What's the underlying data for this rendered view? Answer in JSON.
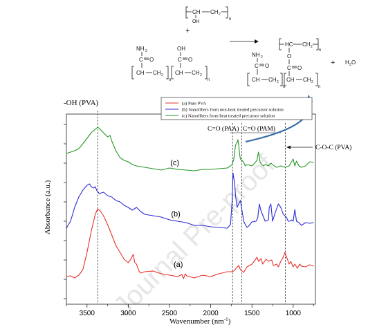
{
  "chart_data": {
    "type": "line",
    "xlabel": "Wavenumber (nm",
    "xlabel_sup": "-1",
    "xlabel_close": ")",
    "ylabel": "Absorbance (a.u.)",
    "xlim": [
      3750,
      730
    ],
    "x_reversed": true,
    "xticks": [
      3500,
      3000,
      2500,
      2000,
      1500,
      1000
    ],
    "y_ticks_labeled": false,
    "legend": {
      "placement": "top-right",
      "entries": [
        {
          "label": "(a) Pure PVA",
          "color": "#e8302a"
        },
        {
          "label": "(b) Nanofibers from non-heat treated precursor solution",
          "color": "#2a2ad6"
        },
        {
          "label": "(c) Nanofibers from heat treated precursor solution",
          "color": "#249624"
        }
      ]
    },
    "series": [
      {
        "name": "(a) Pure PVA",
        "label": "(a)",
        "color": "#e8302a",
        "x": [
          3750,
          3700,
          3650,
          3600,
          3550,
          3500,
          3450,
          3400,
          3370,
          3340,
          3300,
          3250,
          3200,
          3150,
          3100,
          3050,
          3000,
          2970,
          2940,
          2920,
          2900,
          2870,
          2850,
          2800,
          2700,
          2600,
          2500,
          2400,
          2350,
          2330,
          2310,
          2290,
          2200,
          2100,
          2000,
          1900,
          1800,
          1750,
          1720,
          1700,
          1660,
          1640,
          1600,
          1560,
          1500,
          1460,
          1440,
          1420,
          1390,
          1370,
          1330,
          1300,
          1260,
          1240,
          1200,
          1180,
          1150,
          1120,
          1100,
          1090,
          1070,
          1050,
          1030,
          1000,
          980,
          950,
          920,
          900,
          850,
          800,
          750
        ],
        "y": [
          400,
          399,
          402,
          398,
          390,
          365,
          335,
          310,
          302,
          305,
          312,
          325,
          340,
          355,
          365,
          375,
          380,
          375,
          368,
          380,
          382,
          392,
          395,
          393,
          392,
          396,
          398,
          400,
          397,
          403,
          396,
          399,
          402,
          398,
          400,
          396,
          393,
          393,
          392,
          389,
          384,
          390,
          394,
          386,
          382,
          376,
          372,
          378,
          374,
          382,
          375,
          378,
          376,
          384,
          382,
          386,
          378,
          372,
          365,
          369,
          375,
          382,
          378,
          386,
          382,
          388,
          382,
          385,
          386,
          383,
          385
        ]
      },
      {
        "name": "(b) Nanofibers from non-heat treated precursor solution",
        "label": "(b)",
        "color": "#2a2ad6",
        "x": [
          3750,
          3700,
          3650,
          3600,
          3550,
          3500,
          3470,
          3450,
          3420,
          3400,
          3380,
          3350,
          3300,
          3250,
          3200,
          3150,
          3100,
          3050,
          3000,
          2950,
          2900,
          2850,
          2800,
          2700,
          2600,
          2500,
          2400,
          2300,
          2200,
          2100,
          2000,
          1900,
          1800,
          1760,
          1740,
          1730,
          1720,
          1710,
          1700,
          1680,
          1660,
          1640,
          1600,
          1580,
          1560,
          1540,
          1500,
          1450,
          1430,
          1410,
          1390,
          1370,
          1340,
          1300,
          1290,
          1270,
          1250,
          1230,
          1210,
          1180,
          1150,
          1120,
          1100,
          1080,
          1060,
          1040,
          1020,
          1000,
          980,
          960,
          930,
          900,
          850,
          800,
          750
        ],
        "y": [
          330,
          320,
          300,
          285,
          275,
          268,
          266,
          270,
          272,
          270,
          276,
          280,
          278,
          283,
          285,
          290,
          292,
          297,
          300,
          304,
          300,
          306,
          310,
          312,
          314,
          318,
          320,
          322,
          326,
          326,
          328,
          329,
          330,
          325,
          290,
          250,
          258,
          265,
          282,
          300,
          295,
          290,
          320,
          325,
          329,
          327,
          321,
          320,
          315,
          295,
          305,
          311,
          320,
          318,
          300,
          295,
          320,
          312,
          305,
          295,
          300,
          310,
          312,
          315,
          320,
          320,
          318,
          320,
          303,
          320,
          322,
          326,
          322,
          323,
          322
        ]
      },
      {
        "name": "(c) Nanofibers from heat treated precursor solution",
        "label": "(c)",
        "color": "#249624",
        "x": [
          3750,
          3700,
          3650,
          3600,
          3550,
          3500,
          3450,
          3400,
          3370,
          3350,
          3300,
          3250,
          3220,
          3200,
          3150,
          3100,
          3050,
          3000,
          2950,
          2900,
          2800,
          2700,
          2600,
          2500,
          2400,
          2300,
          2200,
          2100,
          2000,
          1900,
          1800,
          1760,
          1740,
          1720,
          1700,
          1680,
          1670,
          1660,
          1650,
          1640,
          1620,
          1600,
          1580,
          1560,
          1500,
          1460,
          1440,
          1420,
          1400,
          1380,
          1360,
          1340,
          1300,
          1270,
          1250,
          1230,
          1200,
          1150,
          1100,
          1050,
          1000,
          980,
          960,
          930,
          900,
          850,
          800,
          750
        ],
        "y": [
          222,
          220,
          218,
          215,
          208,
          200,
          192,
          187,
          184,
          186,
          192,
          198,
          196,
          204,
          218,
          228,
          232,
          234,
          238,
          240,
          242,
          244,
          246,
          243,
          245,
          246,
          247,
          245,
          245,
          244,
          243,
          240,
          238,
          230,
          210,
          206,
          202,
          210,
          222,
          230,
          232,
          235,
          240,
          238,
          240,
          235,
          232,
          220,
          235,
          238,
          240,
          238,
          240,
          236,
          238,
          240,
          242,
          240,
          242,
          240,
          230,
          240,
          233,
          240,
          242,
          240,
          234,
          235
        ]
      }
    ],
    "annotations": {
      "oh_pva": "-OH (PVA)",
      "co_paa": "C=O (PAA)",
      "co_pam": "C=O (PAM)",
      "coc_pva": "C-O-C (PVA)"
    },
    "reference_lines_x": [
      3370,
      1735,
      1625,
      1095
    ]
  },
  "scheme": {
    "pva": {
      "ch": "CH",
      "ch2": "CH",
      "sub2": "2",
      "oh": "OH",
      "n": "n"
    },
    "plus1": "+",
    "pam_pac": {
      "nh2": "NH",
      "nh2_sub": "2",
      "oh": "OH",
      "c": "C",
      "o": "O",
      "ch": "CH",
      "ch2": "CH",
      "sub2": "2",
      "n": "n"
    },
    "product": {
      "hc": "HC",
      "ch2": "CH",
      "sub2": "2",
      "o": "O",
      "c": "C",
      "nh2": "NH",
      "nh2_sub": "2",
      "ch": "CH",
      "n": "n"
    },
    "plus2": "+",
    "water": "H",
    "water_sub": "2",
    "water_o": "O"
  },
  "watermark": "Journal Pre-proof"
}
